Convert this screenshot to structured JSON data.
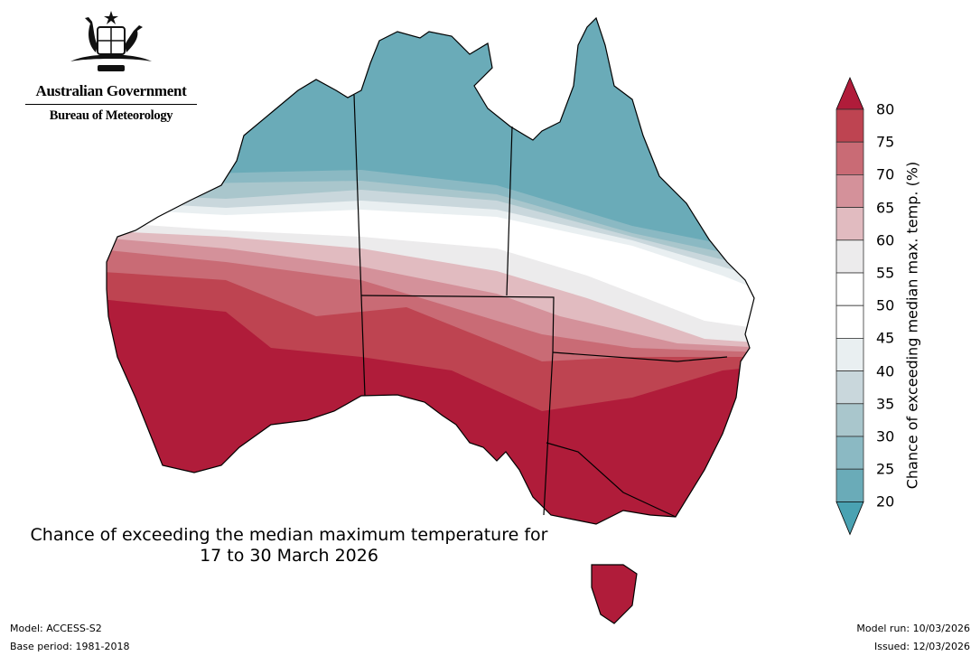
{
  "logo": {
    "government": "Australian Government",
    "bureau": "Bureau of Meteorology"
  },
  "map": {
    "title_line1": "Chance of exceeding the median maximum temperature for",
    "title_line2": "17 to 30 March 2026",
    "region": "Australia"
  },
  "legend": {
    "label": "Chance of exceeding median max. temp. (%)",
    "ticks": [
      "20",
      "25",
      "30",
      "35",
      "40",
      "45",
      "50",
      "55",
      "60",
      "65",
      "70",
      "75",
      "80"
    ],
    "colors": [
      "#6aabb8",
      "#8bb9c3",
      "#a9c6cc",
      "#c9d7dc",
      "#e9eff1",
      "#ffffff",
      "#ffffff",
      "#ecebec",
      "#e1bbc0",
      "#d4919a",
      "#c96b75",
      "#be4451"
    ],
    "under_color": "#4aa2b2",
    "over_color": "#b01c3a"
  },
  "footer": {
    "model": "Model: ACCESS-S2",
    "base_period": "Base period: 1981-2018",
    "model_run": "Model run: 10/03/2026",
    "issued": "Issued: 12/03/2026"
  }
}
